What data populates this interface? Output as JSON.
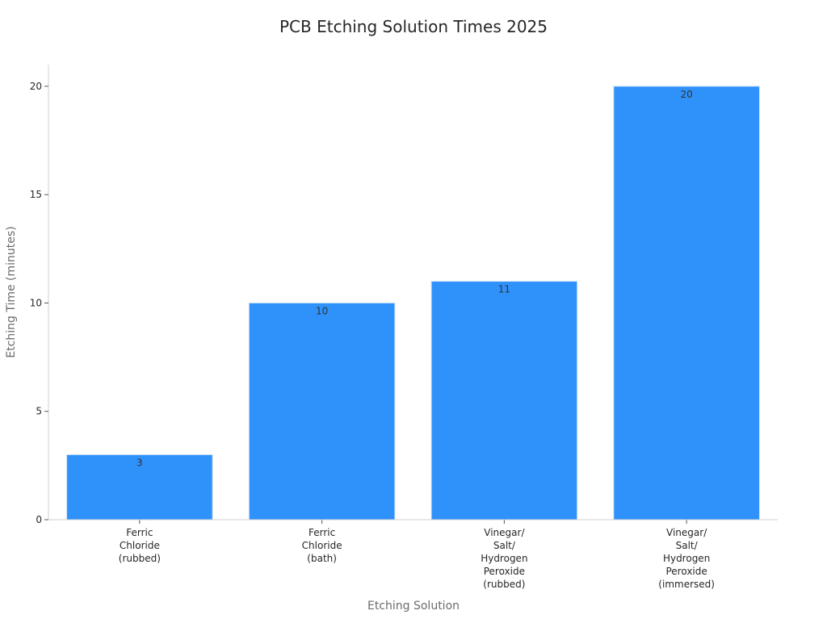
{
  "chart_data": {
    "type": "bar",
    "title": "PCB Etching Solution Times 2025",
    "x_label": "Etching Solution",
    "y_label": "Etching Time (minutes)",
    "categories": [
      "Ferric\nChloride\n(rubbed)",
      "Ferric\nChloride\n(bath)",
      "Vinegar/\nSalt/\nHydrogen\nPeroxide\n(rubbed)",
      "Vinegar/\nSalt/\nHydrogen\nPeroxide\n(immersed)"
    ],
    "values": [
      3,
      10,
      11,
      20
    ],
    "color": "#2f91fa",
    "ylim": [
      0,
      21
    ],
    "yticks": [
      0,
      5,
      10,
      15,
      20
    ],
    "grid": false
  }
}
